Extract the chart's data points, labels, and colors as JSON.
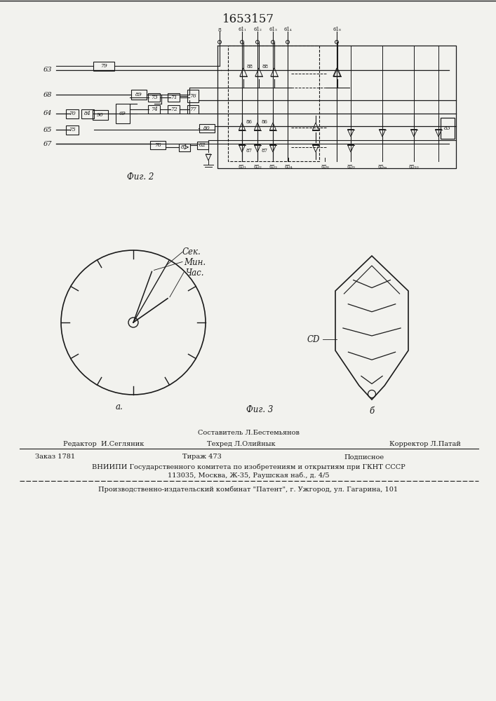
{
  "title_patent": "1653157",
  "bg_color": "#f2f2ee",
  "line_color": "#1a1a1a",
  "fig2_label": "Фиг. 2",
  "fig3_label": "Фиг. 3",
  "clock_labels": [
    "Сек.",
    "Мин.",
    "Час."
  ],
  "clock_sub": "а.",
  "led_sub": "б",
  "led_label": "СD",
  "footer_compositor": "Составитель Л.Бестемьянов",
  "footer_line1_left": "Редактор  И.Сегляник",
  "footer_line1_center": "Техред Л.Олийнык",
  "footer_line1_right": "Корректор Л.Патай",
  "footer_line2_left": "Заказ 1781",
  "footer_line2_center": "Тираж 473",
  "footer_line2_right": "Подписное",
  "footer_line3": "ВНИИПИ Государственного комитета по изобретениям и открытиям при ГКНТ СССР",
  "footer_line4": "113035, Москва, Ж-35, Раушская наб., д. 4/5",
  "footer_line5": "Производственно-издательский комбинат \"Патент\", г. Ужгород, ул. Гагарина, 101"
}
